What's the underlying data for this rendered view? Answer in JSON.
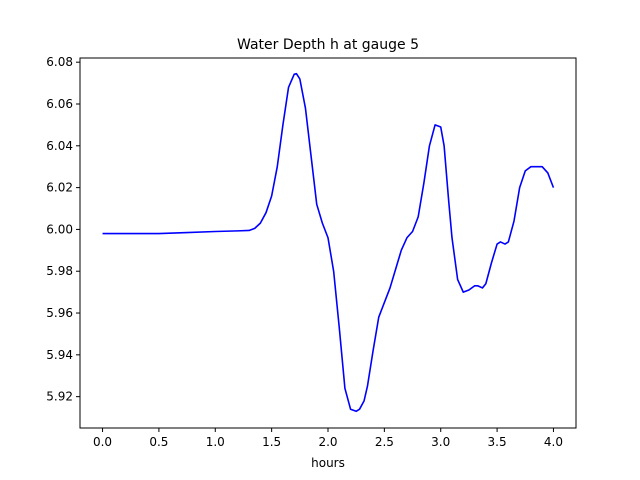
{
  "chart_data": {
    "type": "line",
    "title": "Water Depth h at gauge 5",
    "xlabel": "hours",
    "ylabel": "",
    "xlim": [
      -0.2,
      4.2
    ],
    "ylim": [
      5.905,
      6.082
    ],
    "xticks": [
      0.0,
      0.5,
      1.0,
      1.5,
      2.0,
      2.5,
      3.0,
      3.5,
      4.0
    ],
    "xtick_labels": [
      "0.0",
      "0.5",
      "1.0",
      "1.5",
      "2.0",
      "2.5",
      "3.0",
      "3.5",
      "4.0"
    ],
    "yticks": [
      5.92,
      5.94,
      5.96,
      5.98,
      6.0,
      6.02,
      6.04,
      6.06,
      6.08
    ],
    "ytick_labels": [
      "5.92",
      "5.94",
      "5.96",
      "5.98",
      "6.00",
      "6.02",
      "6.04",
      "6.06",
      "6.08"
    ],
    "grid": false,
    "series": [
      {
        "color": "#0000ff",
        "x": [
          0.0,
          0.25,
          0.5,
          0.75,
          1.0,
          1.2,
          1.3,
          1.35,
          1.4,
          1.45,
          1.5,
          1.55,
          1.6,
          1.65,
          1.7,
          1.72,
          1.75,
          1.8,
          1.85,
          1.9,
          1.95,
          2.0,
          2.05,
          2.1,
          2.15,
          2.2,
          2.25,
          2.28,
          2.32,
          2.35,
          2.4,
          2.45,
          2.5,
          2.55,
          2.6,
          2.65,
          2.7,
          2.75,
          2.8,
          2.85,
          2.9,
          2.95,
          3.0,
          3.03,
          3.07,
          3.1,
          3.15,
          3.2,
          3.25,
          3.3,
          3.33,
          3.37,
          3.4,
          3.45,
          3.5,
          3.53,
          3.57,
          3.6,
          3.65,
          3.7,
          3.75,
          3.8,
          3.85,
          3.9,
          3.95,
          4.0
        ],
        "y": [
          5.998,
          5.998,
          5.998,
          5.9985,
          5.999,
          5.9993,
          5.9995,
          6.0005,
          6.003,
          6.008,
          6.016,
          6.03,
          6.05,
          6.068,
          6.0742,
          6.0745,
          6.072,
          6.058,
          6.035,
          6.012,
          6.003,
          5.996,
          5.98,
          5.953,
          5.924,
          5.914,
          5.913,
          5.914,
          5.918,
          5.925,
          5.942,
          5.958,
          5.965,
          5.972,
          5.981,
          5.99,
          5.996,
          5.999,
          6.006,
          6.022,
          6.04,
          6.05,
          6.049,
          6.04,
          6.014,
          5.996,
          5.976,
          5.97,
          5.971,
          5.973,
          5.973,
          5.972,
          5.974,
          5.984,
          5.993,
          5.994,
          5.993,
          5.994,
          6.004,
          6.02,
          6.028,
          6.03,
          6.03,
          6.03,
          6.027,
          6.02
        ]
      }
    ]
  }
}
